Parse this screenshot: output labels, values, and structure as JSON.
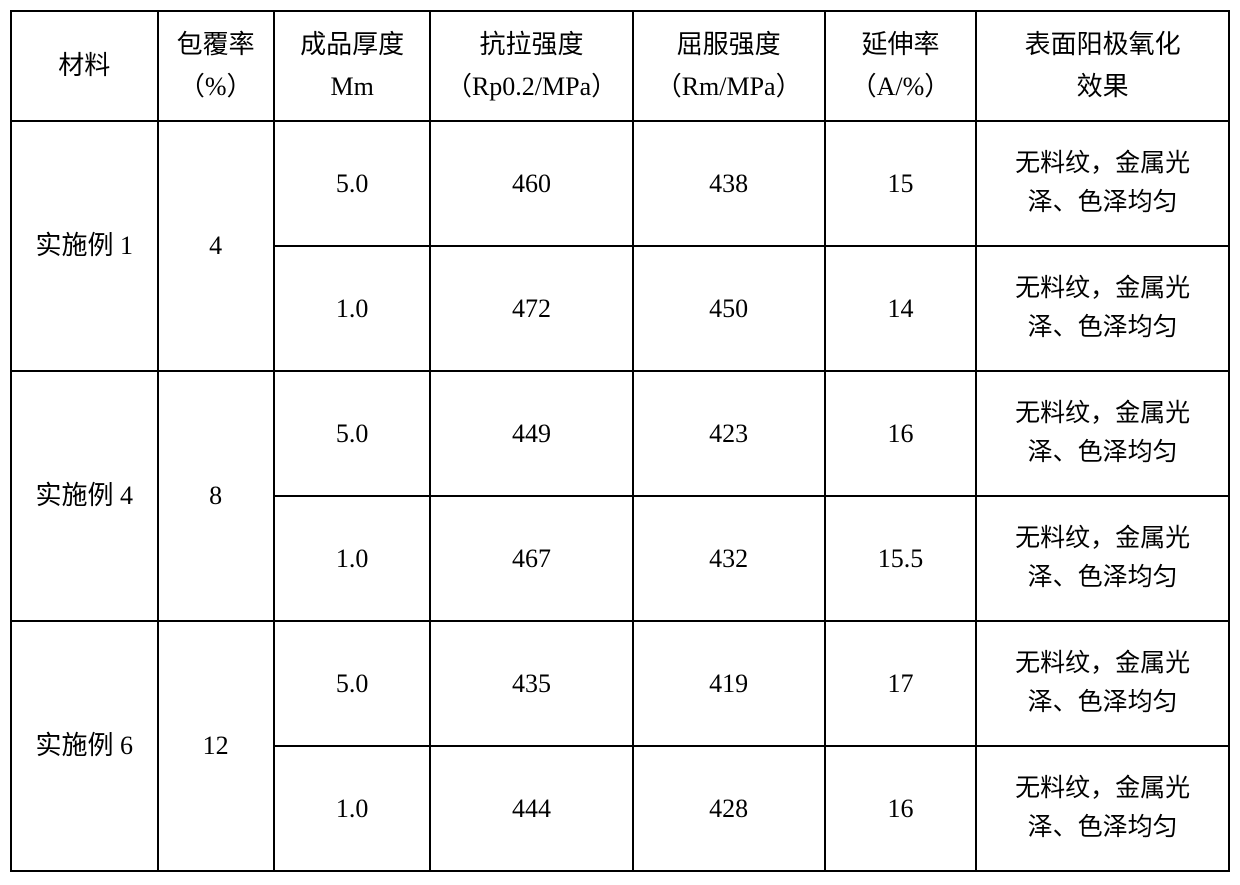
{
  "table": {
    "headers": {
      "material": "材料",
      "coverage": "包覆率\n（%）",
      "thickness": "成品厚度\nMm",
      "tensile": "抗拉强度\n（Rp0.2/MPa）",
      "yield": "屈服强度\n（Rm/MPa）",
      "elongation": "延伸率\n（A/%）",
      "effect": "表面阳极氧化\n效果"
    },
    "groups": [
      {
        "material": "实施例 1",
        "coverage": "4",
        "rows": [
          {
            "thickness": "5.0",
            "tensile": "460",
            "yield": "438",
            "elongation": "15",
            "effect": "无料纹，金属光\n泽、色泽均匀"
          },
          {
            "thickness": "1.0",
            "tensile": "472",
            "yield": "450",
            "elongation": "14",
            "effect": "无料纹，金属光\n泽、色泽均匀"
          }
        ]
      },
      {
        "material": "实施例 4",
        "coverage": "8",
        "rows": [
          {
            "thickness": "5.0",
            "tensile": "449",
            "yield": "423",
            "elongation": "16",
            "effect": "无料纹，金属光\n泽、色泽均匀"
          },
          {
            "thickness": "1.0",
            "tensile": "467",
            "yield": "432",
            "elongation": "15.5",
            "effect": "无料纹，金属光\n泽、色泽均匀"
          }
        ]
      },
      {
        "material": "实施例 6",
        "coverage": "12",
        "rows": [
          {
            "thickness": "5.0",
            "tensile": "435",
            "yield": "419",
            "elongation": "17",
            "effect": "无料纹，金属光\n泽、色泽均匀"
          },
          {
            "thickness": "1.0",
            "tensile": "444",
            "yield": "428",
            "elongation": "16",
            "effect": "无料纹，金属光\n泽、色泽均匀"
          }
        ]
      }
    ]
  },
  "styling": {
    "border_color": "#000000",
    "border_width": 2,
    "background_color": "#ffffff",
    "font_family": "SimSun",
    "header_fontsize": 26,
    "cell_fontsize": 26,
    "effect_fontsize": 25,
    "header_row_height": 110,
    "data_row_height": 125,
    "column_widths": {
      "material": 145,
      "coverage": 115,
      "thickness": 155,
      "tensile": 200,
      "yield": 190,
      "elongation": 150,
      "effect": 250
    }
  }
}
